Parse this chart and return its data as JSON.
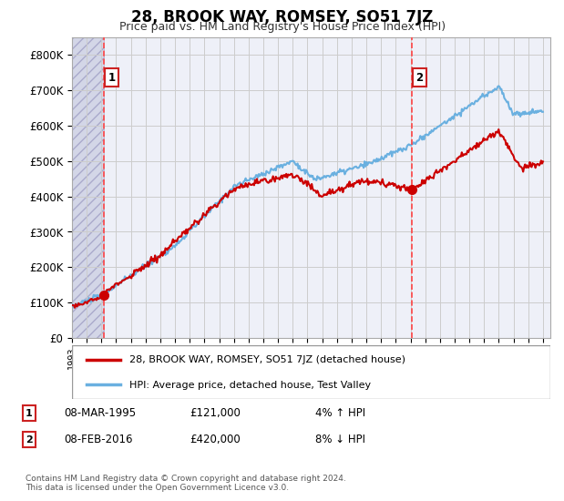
{
  "title": "28, BROOK WAY, ROMSEY, SO51 7JZ",
  "subtitle": "Price paid vs. HM Land Registry's House Price Index (HPI)",
  "legend_line1": "28, BROOK WAY, ROMSEY, SO51 7JZ (detached house)",
  "legend_line2": "HPI: Average price, detached house, Test Valley",
  "annotation1_date": "08-MAR-1995",
  "annotation1_price": "£121,000",
  "annotation1_hpi": "4% ↑ HPI",
  "annotation2_date": "08-FEB-2016",
  "annotation2_price": "£420,000",
  "annotation2_hpi": "8% ↓ HPI",
  "footnote": "Contains HM Land Registry data © Crown copyright and database right 2024.\nThis data is licensed under the Open Government Licence v3.0.",
  "hpi_color": "#6ab0e0",
  "sale_color": "#cc0000",
  "dashed_line_color": "#ff4444",
  "hatch_color": "#c8cce0",
  "grid_color": "#cccccc",
  "bg_color": "#eef0f8",
  "ylim": [
    0,
    850000
  ],
  "yticks": [
    0,
    100000,
    200000,
    300000,
    400000,
    500000,
    600000,
    700000,
    800000
  ],
  "sale1_x": 1995.18,
  "sale1_y": 121000,
  "sale2_x": 2016.1,
  "sale2_y": 420000,
  "xmin": 1993,
  "xmax": 2025.5
}
